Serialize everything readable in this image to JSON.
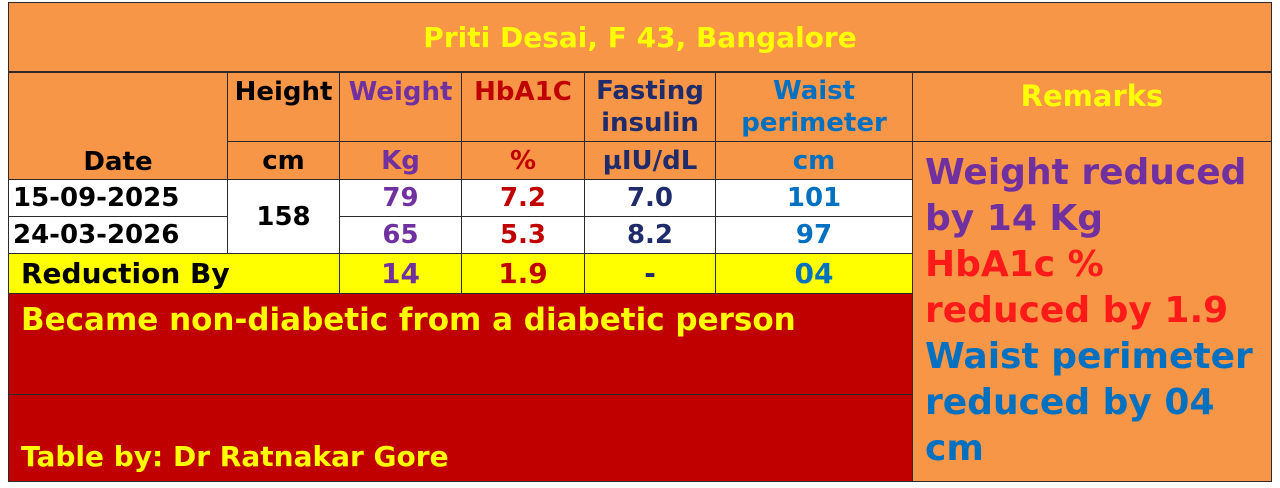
{
  "title": "Priti Desai, F 43, Bangalore",
  "headers": {
    "height": "Height",
    "weight": "Weight",
    "hba1c": "HbA1C",
    "fasting_line1": "Fasting",
    "fasting_line2": "insulin",
    "waist_line1": "Waist",
    "waist_line2": "perimeter",
    "remarks": "Remarks"
  },
  "units": {
    "date": "Date",
    "height": "cm",
    "weight": "Kg",
    "hba1c": "%",
    "fasting": "µIU/dL",
    "waist": "cm"
  },
  "rows": [
    {
      "date": "15-09-2025",
      "weight": "79",
      "hba1c": "7.2",
      "fasting": "7.0",
      "waist": "101"
    },
    {
      "date": "24-03-2026",
      "weight": "65",
      "hba1c": "5.3",
      "fasting": "8.2",
      "waist": "97"
    }
  ],
  "height_value": "158",
  "reduction": {
    "label": "Reduction By",
    "weight": "14",
    "hba1c": "1.9",
    "fasting": "-",
    "waist": "04"
  },
  "conclusion": "Became non-diabetic from a diabetic person",
  "credit": "Table by: Dr Ratnakar Gore",
  "remarks_text": {
    "weight": "Weight reduced by 14 Kg",
    "hba1c": "HbA1c % reduced by 1.9",
    "waist": "Waist perimeter reduced by 04 cm"
  },
  "colors": {
    "background": "#f79646",
    "title_text": "#ffff00",
    "weight": "#7030a0",
    "hba1c": "#c00000",
    "fasting": "#1f2b6b",
    "waist": "#0070c0",
    "reduction_row": "#ffff00",
    "conclusion_bg": "#c00000"
  }
}
